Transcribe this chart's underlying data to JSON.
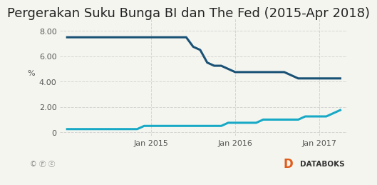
{
  "title": "Pergerakan Suku Bunga BI dan The Fed (2015-Apr 2018)",
  "title_fontsize": 13,
  "ylabel": "%",
  "ylim": [
    -0.3,
    9.0
  ],
  "yticks": [
    0,
    2.0,
    4.0,
    6.0,
    8.0
  ],
  "ytick_labels": [
    "0",
    "2.00",
    "4.00",
    "6.00",
    "8.00"
  ],
  "xtick_labels": [
    "Jan 2015",
    "Jan 2016",
    "Jan 2017"
  ],
  "background_color": "#f5f5f0",
  "bi_color": "#1a5276",
  "fed_color": "#17a9c5",
  "bi_data": {
    "dates_months": [
      0,
      1,
      2,
      3,
      4,
      5,
      6,
      7,
      8,
      9,
      10,
      11,
      12,
      13,
      14,
      15,
      16,
      17,
      18,
      19,
      20,
      21,
      22,
      23,
      24,
      25,
      26,
      27,
      28,
      29,
      30,
      31,
      32,
      33,
      34,
      35,
      36,
      37,
      38,
      39
    ],
    "values": [
      7.5,
      7.5,
      7.5,
      7.5,
      7.5,
      7.5,
      7.5,
      7.5,
      7.5,
      7.5,
      7.5,
      7.5,
      7.5,
      7.5,
      7.5,
      7.5,
      7.5,
      7.5,
      6.75,
      6.5,
      5.5,
      5.25,
      5.25,
      5.0,
      4.75,
      4.75,
      4.75,
      4.75,
      4.75,
      4.75,
      4.75,
      4.75,
      4.5,
      4.25,
      4.25,
      4.25,
      4.25,
      4.25,
      4.25,
      4.25
    ]
  },
  "fed_data": {
    "dates_months": [
      0,
      1,
      2,
      3,
      4,
      5,
      6,
      7,
      8,
      9,
      10,
      11,
      12,
      13,
      14,
      15,
      16,
      17,
      18,
      19,
      20,
      21,
      22,
      23,
      24,
      25,
      26,
      27,
      28,
      29,
      30,
      31,
      32,
      33,
      34,
      35,
      36,
      37,
      38,
      39
    ],
    "values": [
      0.25,
      0.25,
      0.25,
      0.25,
      0.25,
      0.25,
      0.25,
      0.25,
      0.25,
      0.25,
      0.25,
      0.5,
      0.5,
      0.5,
      0.5,
      0.5,
      0.5,
      0.5,
      0.5,
      0.5,
      0.5,
      0.5,
      0.5,
      0.75,
      0.75,
      0.75,
      0.75,
      0.75,
      1.0,
      1.0,
      1.0,
      1.0,
      1.0,
      1.0,
      1.25,
      1.25,
      1.25,
      1.25,
      1.5,
      1.75
    ]
  },
  "line_width": 2.2,
  "grid_color": "#cccccc",
  "footer_bg": "#ffffff",
  "databoks_color": "#e05c1a"
}
